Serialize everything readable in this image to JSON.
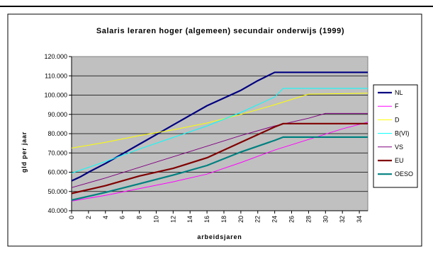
{
  "chart_data": {
    "type": "line",
    "title": "Salaris leraren hoger (algemeen) secundair onderwijs (1999)",
    "xlabel": "arbeidsjaren",
    "ylabel": "gld per jaar",
    "xlim": [
      0,
      35
    ],
    "ylim": [
      40000,
      120000
    ],
    "x_ticks": [
      "0",
      "2",
      "4",
      "6",
      "8",
      "10",
      "12",
      "14",
      "16",
      "18",
      "20",
      "22",
      "24",
      "26",
      "28",
      "30",
      "32",
      "34"
    ],
    "y_ticks": [
      "40.000",
      "50.000",
      "60.000",
      "70.000",
      "80.000",
      "90.000",
      "100.000",
      "110.000",
      "120.000"
    ],
    "plot_background": "#c0c0c0",
    "grid": true,
    "legend_position": "right",
    "series": [
      {
        "name": "NL",
        "color": "#000080",
        "width": 2.2,
        "points": [
          [
            0,
            55500
          ],
          [
            1,
            57500
          ],
          [
            2,
            60000
          ],
          [
            4,
            64500
          ],
          [
            6,
            69500
          ],
          [
            8,
            74500
          ],
          [
            10,
            79500
          ],
          [
            12,
            84500
          ],
          [
            14,
            89500
          ],
          [
            16,
            94500
          ],
          [
            18,
            98500
          ],
          [
            20,
            102500
          ],
          [
            22,
            107500
          ],
          [
            24,
            111800
          ],
          [
            35,
            111800
          ]
        ]
      },
      {
        "name": "F",
        "color": "#ff00ff",
        "width": 1,
        "points": [
          [
            0,
            45000
          ],
          [
            4,
            48000
          ],
          [
            8,
            51500
          ],
          [
            12,
            55000
          ],
          [
            16,
            59000
          ],
          [
            20,
            65000
          ],
          [
            24,
            71500
          ],
          [
            28,
            77000
          ],
          [
            32,
            82500
          ],
          [
            35,
            86000
          ]
        ]
      },
      {
        "name": "D",
        "color": "#ffff00",
        "width": 1,
        "points": [
          [
            0,
            72500
          ],
          [
            4,
            75500
          ],
          [
            8,
            79000
          ],
          [
            12,
            82000
          ],
          [
            16,
            85500
          ],
          [
            20,
            90000
          ],
          [
            24,
            95000
          ],
          [
            28,
            100500
          ],
          [
            35,
            101000
          ]
        ]
      },
      {
        "name": "B(VI)",
        "color": "#00ffff",
        "width": 1,
        "points": [
          [
            0,
            59500
          ],
          [
            4,
            65500
          ],
          [
            8,
            72000
          ],
          [
            12,
            78000
          ],
          [
            16,
            84000
          ],
          [
            20,
            91000
          ],
          [
            24,
            99000
          ],
          [
            25,
            103500
          ],
          [
            35,
            103500
          ]
        ]
      },
      {
        "name": "VS",
        "color": "#800080",
        "width": 1,
        "points": [
          [
            0,
            52000
          ],
          [
            4,
            57000
          ],
          [
            8,
            62500
          ],
          [
            12,
            68000
          ],
          [
            16,
            73500
          ],
          [
            20,
            79000
          ],
          [
            24,
            84000
          ],
          [
            28,
            88000
          ],
          [
            30,
            90500
          ],
          [
            35,
            90500
          ]
        ]
      },
      {
        "name": "EU",
        "color": "#800000",
        "width": 2.2,
        "points": [
          [
            0,
            49000
          ],
          [
            4,
            53000
          ],
          [
            8,
            58000
          ],
          [
            12,
            62000
          ],
          [
            16,
            67500
          ],
          [
            20,
            75500
          ],
          [
            24,
            83500
          ],
          [
            25,
            85200
          ],
          [
            35,
            85200
          ]
        ]
      },
      {
        "name": "OESO",
        "color": "#008080",
        "width": 2.2,
        "points": [
          [
            0,
            45500
          ],
          [
            4,
            49500
          ],
          [
            8,
            54000
          ],
          [
            12,
            58500
          ],
          [
            16,
            63500
          ],
          [
            20,
            70500
          ],
          [
            24,
            76500
          ],
          [
            25,
            78200
          ],
          [
            35,
            78200
          ]
        ]
      }
    ]
  }
}
